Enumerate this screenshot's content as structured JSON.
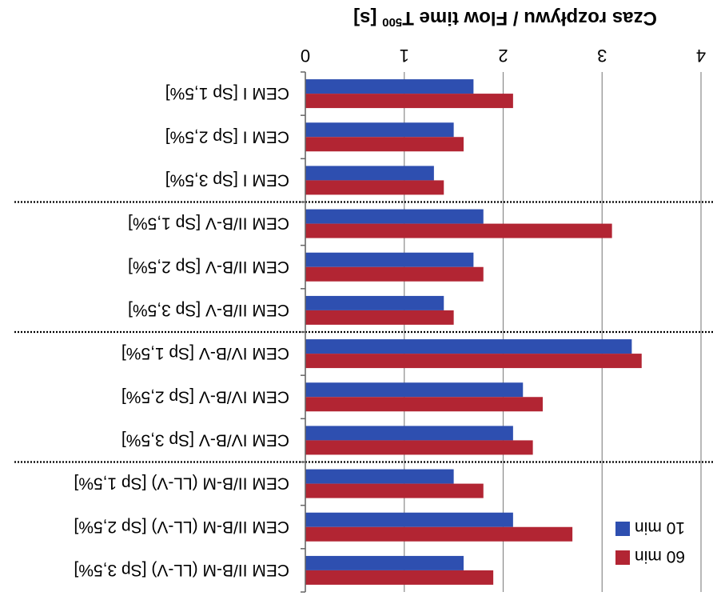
{
  "chart_data": {
    "type": "bar",
    "orientation": "horizontal",
    "rotation": "180",
    "title": "",
    "xlabel": "Czas rozpływu / Flow time T",
    "xlabel_superscript": "500",
    "xlabel_unit": "[s]",
    "ylabel": "",
    "xlim": [
      0,
      4
    ],
    "xticks": [
      "0",
      "1",
      "2",
      "3",
      "4"
    ],
    "grid": "vertical",
    "legend_position": "bottom-right",
    "categories": [
      "CEM I [Sp 1,5%]",
      "CEM I [Sp 2,5%]",
      "CEM I [Sp 3,5%]",
      "CEM II/B-V [Sp 1,5%]",
      "CEM II/B-V [Sp 2,5%]",
      "CEM II/B-V [Sp 3,5%]",
      "CEM IV/B-V [Sp 1,5%]",
      "CEM IV/B-V [Sp 2,5%]",
      "CEM IV/B-V [Sp 3,5%]",
      "CEM II/B-M (LL-V) [Sp 1,5%]",
      "CEM II/B-M (LL-V) [Sp 2,5%]",
      "CEM II/B-M (LL-V) [Sp 3,5%]"
    ],
    "group_separators_after": [
      2,
      5,
      8
    ],
    "series": [
      {
        "name": "10 min",
        "color": "#2e4fb0",
        "values": [
          1.7,
          1.5,
          1.3,
          1.8,
          1.7,
          1.4,
          3.3,
          2.2,
          2.1,
          1.5,
          2.1,
          1.6
        ]
      },
      {
        "name": "60 min",
        "color": "#b22533",
        "values": [
          2.1,
          1.6,
          1.4,
          3.1,
          1.8,
          1.5,
          3.4,
          2.4,
          2.3,
          1.8,
          2.7,
          1.9
        ]
      }
    ]
  }
}
